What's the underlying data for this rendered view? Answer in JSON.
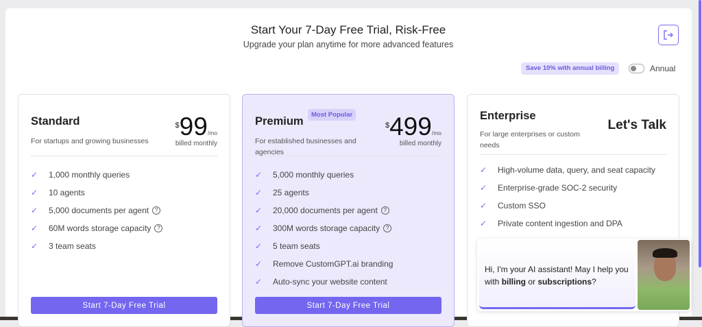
{
  "header": {
    "title": "Start Your 7-Day Free Trial, Risk-Free",
    "subtitle": "Upgrade your plan anytime for more advanced features"
  },
  "billing": {
    "save_badge": "Save 10% with annual billing",
    "toggle_label": "Annual",
    "annual_enabled": false
  },
  "accent": "#7466ee",
  "plans": [
    {
      "name": "Standard",
      "description": "For startups and growing businesses",
      "currency": "$",
      "price": "99",
      "period": "/mo",
      "billing": "billed monthly",
      "features": [
        "1,000 monthly queries",
        "10 agents",
        "5,000 documents per agent",
        "60M words storage capacity",
        "3 team seats"
      ],
      "cta": "Start 7-Day Free Trial"
    },
    {
      "name": "Premium",
      "badge": "Most Popular",
      "description": "For established businesses and agencies",
      "currency": "$",
      "price": "499",
      "period": "/mo",
      "billing": "billed monthly",
      "features": [
        "5,000 monthly queries",
        "25 agents",
        "20,000 documents per agent",
        "300M words storage capacity",
        "5 team seats",
        "Remove CustomGPT.ai branding",
        "Auto-sync your website content"
      ],
      "cta": "Start 7-Day Free Trial"
    },
    {
      "name": "Enterprise",
      "description": "For large enterprises or custom needs",
      "price_label": "Let's Talk",
      "features": [
        "High-volume data, query, and seat capacity",
        "Enterprise-grade SOC-2 security",
        "Custom SSO",
        "Private content ingestion and DPA"
      ]
    }
  ],
  "chat": {
    "pre": "Hi, I'm your AI assistant! May I help you with ",
    "b1": "billing",
    "mid": " or ",
    "b2": "subscriptions",
    "post": "?"
  }
}
